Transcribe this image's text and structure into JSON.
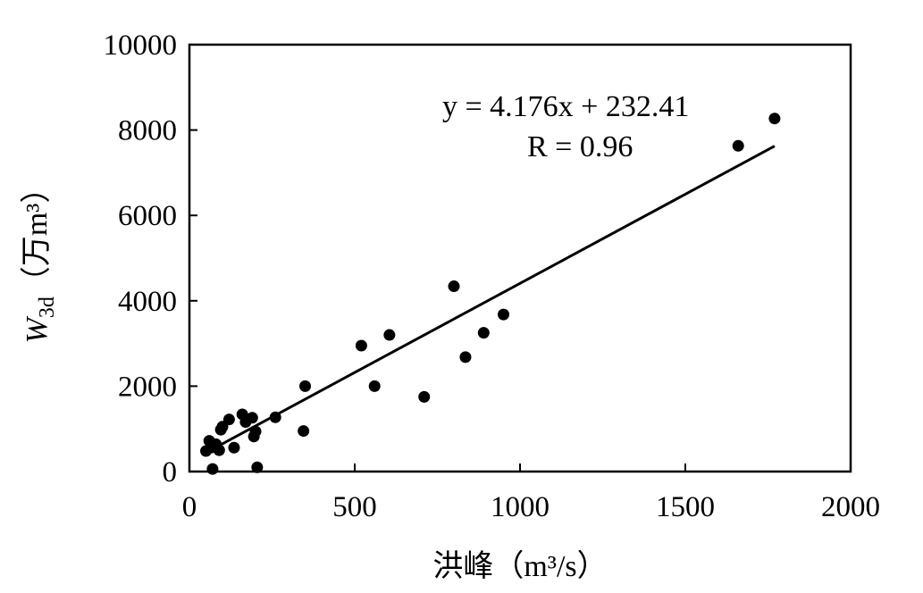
{
  "chart_data": {
    "type": "scatter",
    "xlabel": "洪峰（m³/s）",
    "ylabel_main": "W",
    "ylabel_sub": "3d",
    "ylabel_unit": "（万m³）",
    "xlim": [
      0,
      2000
    ],
    "ylim": [
      0,
      10000
    ],
    "x_ticks": [
      "0",
      "500",
      "1000",
      "1500",
      "2000"
    ],
    "y_ticks": [
      "0",
      "2000",
      "4000",
      "6000",
      "8000",
      "10000"
    ],
    "grid": false,
    "legend": "none",
    "marker_color": "#000000",
    "points": [
      {
        "x": 50,
        "y": 480
      },
      {
        "x": 60,
        "y": 720
      },
      {
        "x": 65,
        "y": 560
      },
      {
        "x": 70,
        "y": 60
      },
      {
        "x": 80,
        "y": 640
      },
      {
        "x": 90,
        "y": 500
      },
      {
        "x": 95,
        "y": 980
      },
      {
        "x": 100,
        "y": 1050
      },
      {
        "x": 120,
        "y": 1220
      },
      {
        "x": 135,
        "y": 560
      },
      {
        "x": 160,
        "y": 1340
      },
      {
        "x": 170,
        "y": 1160
      },
      {
        "x": 190,
        "y": 1260
      },
      {
        "x": 195,
        "y": 820
      },
      {
        "x": 200,
        "y": 940
      },
      {
        "x": 205,
        "y": 100
      },
      {
        "x": 260,
        "y": 1270
      },
      {
        "x": 345,
        "y": 950
      },
      {
        "x": 350,
        "y": 2000
      },
      {
        "x": 520,
        "y": 2950
      },
      {
        "x": 560,
        "y": 2000
      },
      {
        "x": 605,
        "y": 3200
      },
      {
        "x": 710,
        "y": 1750
      },
      {
        "x": 800,
        "y": 4340
      },
      {
        "x": 835,
        "y": 2680
      },
      {
        "x": 890,
        "y": 3250
      },
      {
        "x": 950,
        "y": 3680
      },
      {
        "x": 1660,
        "y": 7630
      },
      {
        "x": 1770,
        "y": 8270
      }
    ],
    "trendline": {
      "slope": 4.176,
      "intercept": 232.41,
      "x_range": [
        50,
        1770
      ],
      "equation_text": "y = 4.176x + 232.41",
      "r_text": "R = 0.96"
    }
  }
}
